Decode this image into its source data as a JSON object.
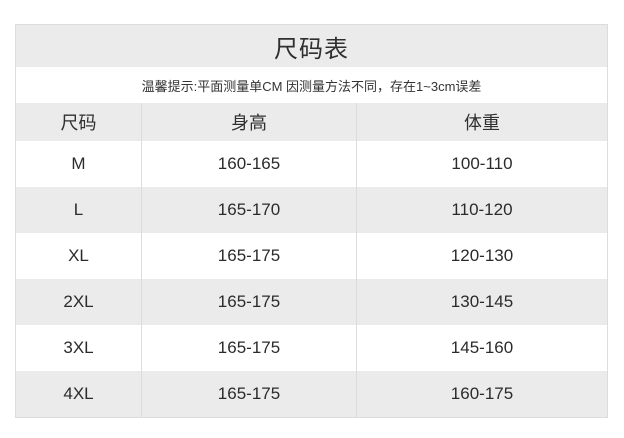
{
  "theme": {
    "page-bg": "#ffffff",
    "gray-bg": "#ebebeb",
    "border-color": "#dcdcdc",
    "text-color": "#333333"
  },
  "table": {
    "title": "尺码表",
    "notice": "温馨提示:平面测量单CM 因测量方法不同，存在1~3cm误差",
    "columns": [
      "尺码",
      "身高",
      "体重"
    ],
    "rows": [
      {
        "size": "M",
        "height": "160-165",
        "weight": "100-110"
      },
      {
        "size": "L",
        "height": "165-170",
        "weight": "110-120"
      },
      {
        "size": "XL",
        "height": "165-175",
        "weight": "120-130"
      },
      {
        "size": "2XL",
        "height": "165-175",
        "weight": "130-145"
      },
      {
        "size": "3XL",
        "height": "165-175",
        "weight": "145-160"
      },
      {
        "size": "4XL",
        "height": "165-175",
        "weight": "160-175"
      }
    ]
  }
}
